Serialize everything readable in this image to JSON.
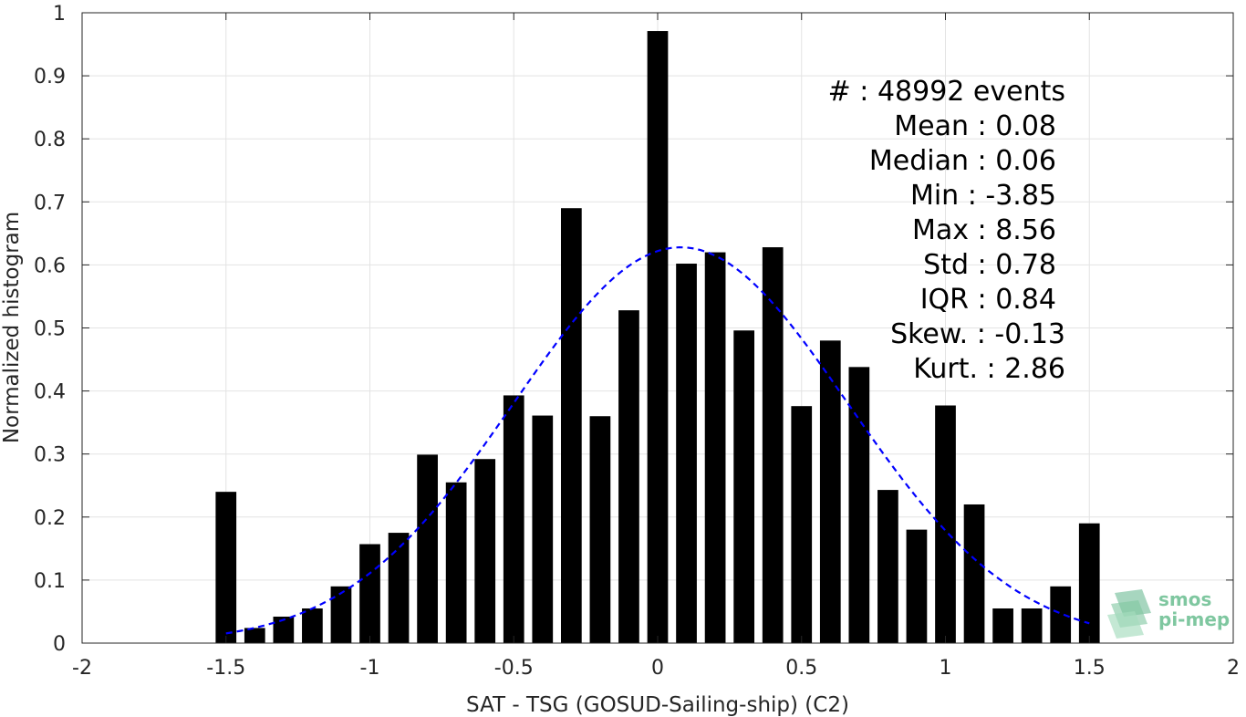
{
  "chart_data": {
    "type": "bar",
    "title": "",
    "xlabel": "SAT - TSG (GOSUD-Sailing-ship) (C2)",
    "ylabel": "Normalized histogram",
    "xlim": [
      -2,
      2
    ],
    "ylim": [
      0,
      1
    ],
    "xticks": [
      -2,
      -1.5,
      -1,
      -0.5,
      0,
      0.5,
      1,
      1.5,
      2
    ],
    "xtick_labels": [
      "-2",
      "-1.5",
      "-1",
      "-0.5",
      "0",
      "0.5",
      "1",
      "1.5",
      "2"
    ],
    "yticks": [
      0,
      0.1,
      0.2,
      0.3,
      0.4,
      0.5,
      0.6,
      0.7,
      0.8,
      0.9,
      1
    ],
    "ytick_labels": [
      "0",
      "0.1",
      "0.2",
      "0.3",
      "0.4",
      "0.5",
      "0.6",
      "0.7",
      "0.8",
      "0.9",
      "1"
    ],
    "grid": true,
    "bar_color": "#000000",
    "bin_width": 0.1,
    "bins": [
      {
        "x": -1.5,
        "y": 0.24
      },
      {
        "x": -1.4,
        "y": 0.024
      },
      {
        "x": -1.3,
        "y": 0.042
      },
      {
        "x": -1.2,
        "y": 0.055
      },
      {
        "x": -1.1,
        "y": 0.09
      },
      {
        "x": -1.0,
        "y": 0.157
      },
      {
        "x": -0.9,
        "y": 0.175
      },
      {
        "x": -0.8,
        "y": 0.299
      },
      {
        "x": -0.7,
        "y": 0.255
      },
      {
        "x": -0.6,
        "y": 0.292
      },
      {
        "x": -0.5,
        "y": 0.393
      },
      {
        "x": -0.4,
        "y": 0.361
      },
      {
        "x": -0.3,
        "y": 0.69
      },
      {
        "x": -0.2,
        "y": 0.36
      },
      {
        "x": -0.1,
        "y": 0.528
      },
      {
        "x": 0.0,
        "y": 0.971
      },
      {
        "x": 0.1,
        "y": 0.602
      },
      {
        "x": 0.2,
        "y": 0.62
      },
      {
        "x": 0.3,
        "y": 0.496
      },
      {
        "x": 0.4,
        "y": 0.628
      },
      {
        "x": 0.5,
        "y": 0.376
      },
      {
        "x": 0.6,
        "y": 0.48
      },
      {
        "x": 0.7,
        "y": 0.438
      },
      {
        "x": 0.8,
        "y": 0.243
      },
      {
        "x": 0.9,
        "y": 0.18
      },
      {
        "x": 1.0,
        "y": 0.377
      },
      {
        "x": 1.1,
        "y": 0.22
      },
      {
        "x": 1.2,
        "y": 0.055
      },
      {
        "x": 1.3,
        "y": 0.055
      },
      {
        "x": 1.4,
        "y": 0.09
      },
      {
        "x": 1.5,
        "y": 0.19
      }
    ],
    "fit_curve": {
      "type": "gaussian",
      "color": "#0000ff",
      "style": "dashed",
      "mean": 0.08,
      "peak": 0.628,
      "sigma": 0.58,
      "x_range": [
        -1.5,
        1.5
      ]
    },
    "annotations": [
      {
        "label": "#  : 48992 events"
      },
      {
        "label": "Mean : 0.08"
      },
      {
        "label": "Median : 0.06"
      },
      {
        "label": "Min : -3.85"
      },
      {
        "label": "Max : 8.56"
      },
      {
        "label": "Std : 0.78"
      },
      {
        "label": "IQR : 0.84"
      },
      {
        "label": "Skew. : -0.13"
      },
      {
        "label": "Kurt. : 2.86"
      }
    ]
  },
  "logo": {
    "line1": "smos",
    "line2": "pi-mep",
    "color": "#7fc7a0"
  }
}
